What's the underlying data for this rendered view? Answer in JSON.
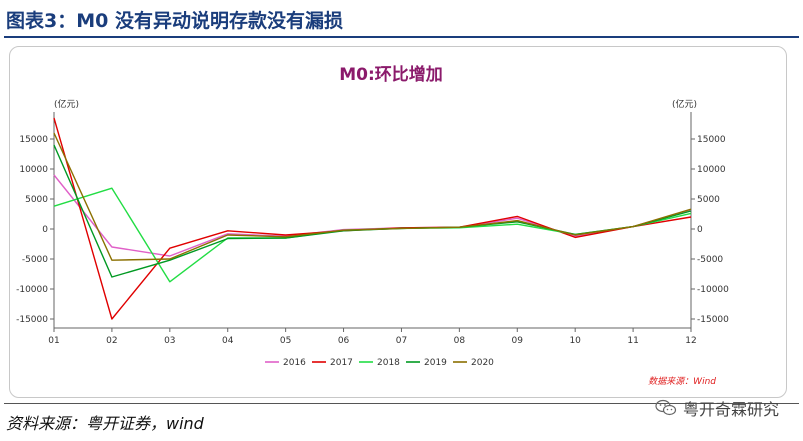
{
  "header": {
    "title": "图表3：M0 没有异动说明存款没有漏损"
  },
  "footer": {
    "source": "资料来源：粤开证券，wind",
    "brand": "粤开奇霖研究"
  },
  "colors": {
    "title": "#8b1a6b",
    "header_text": "#1a3d7c",
    "wind_note": "#e02020"
  },
  "chart_data": {
    "type": "line",
    "title": "M0:环比增加",
    "y_unit_left": "(亿元)",
    "y_unit_right": "(亿元)",
    "x": [
      "01",
      "02",
      "03",
      "04",
      "05",
      "06",
      "07",
      "08",
      "09",
      "10",
      "11",
      "12"
    ],
    "ylim": [
      -16500,
      19500
    ],
    "yticks": [
      -15000,
      -10000,
      -5000,
      0,
      5000,
      10000,
      15000
    ],
    "note": "数据来源：Wind",
    "grid": false,
    "legend_position": "bottom",
    "series": [
      {
        "name": "2016",
        "color": "#e060c8",
        "values": [
          9000,
          -3000,
          -4500,
          -800,
          -1200,
          -100,
          200,
          300,
          1800,
          -1200,
          400,
          3200
        ]
      },
      {
        "name": "2017",
        "color": "#e00000",
        "values": [
          18500,
          -15000,
          -3200,
          -300,
          -1000,
          -300,
          200,
          300,
          2100,
          -1400,
          400,
          2000
        ]
      },
      {
        "name": "2018",
        "color": "#22dd44",
        "values": [
          3800,
          6800,
          -8800,
          -1500,
          -1500,
          -200,
          100,
          200,
          800,
          -900,
          400,
          2600
        ]
      },
      {
        "name": "2019",
        "color": "#009922",
        "values": [
          14000,
          -8000,
          -5200,
          -1600,
          -1500,
          -300,
          100,
          300,
          1200,
          -900,
          400,
          3000
        ]
      },
      {
        "name": "2020",
        "color": "#8b7000",
        "values": [
          16000,
          -5200,
          -5000,
          -1000,
          -1300,
          -200,
          100,
          300,
          1400,
          -1000,
          400,
          3300
        ]
      }
    ]
  }
}
